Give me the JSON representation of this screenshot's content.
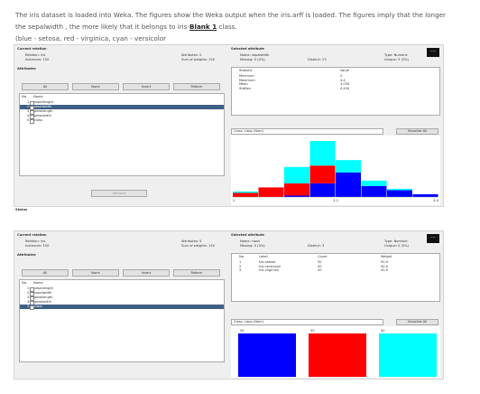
{
  "question": {
    "line1": "The iris dataset is loaded into Weka. The figures show the Weka output when the iris.arff is loaded. The figures imply that the longer",
    "line2_pre": "the sepalwidth , the more likely that it belongs to iris-",
    "blank": "Blank 1",
    "line2_post": " class.",
    "line3": "(blue - setosa, red - virginica, cyan - versicolor"
  },
  "screens": [
    {
      "current_relation": "Current relation",
      "relation": "Relation: iris",
      "instances": "Instances: 150",
      "attributes_count": "Attributes: 5",
      "sum_weights": "Sum of weights: 150",
      "attributes_title": "Attributes",
      "buttons": [
        "All",
        "None",
        "Invert",
        "Pattern"
      ],
      "columns": [
        "No.",
        "Name"
      ],
      "rows": [
        [
          "1",
          "sepallength"
        ],
        [
          "2",
          "sepalwidth"
        ],
        [
          "3",
          "petallength"
        ],
        [
          "4",
          "petalwidth"
        ],
        [
          "5",
          "class"
        ]
      ],
      "selected_row": 1,
      "remove": "Remove",
      "status": "Status",
      "selected_attribute": "Selected attribute",
      "name": "Name: sepalwidth",
      "missing": "Missing: 0 (0%)",
      "distinct": "Distinct: 23",
      "type": "Type: Numeric",
      "unique": "Unique: 5 (3%)",
      "stats_columns": [
        "Statistic",
        "Value"
      ],
      "stats": [
        [
          "Minimum",
          "2"
        ],
        [
          "Maximum",
          "4.4"
        ],
        [
          "Mean",
          "3.054"
        ],
        [
          "StdDev",
          "0.434"
        ]
      ],
      "class_select": "Class: class (Nom)",
      "visualize": "Visualize All",
      "histogram": {
        "colors": [
          "#0000ff",
          "#ff0000",
          "#00ffff"
        ],
        "segments": [
          [
            0,
            3,
            1
          ],
          [
            0,
            7,
            0
          ],
          [
            1,
            9,
            12
          ],
          [
            10,
            13,
            18
          ],
          [
            18,
            0,
            9
          ],
          [
            8,
            0,
            4
          ],
          [
            5,
            0,
            1
          ],
          [
            2,
            0,
            0
          ]
        ],
        "x_labels": [
          "2",
          "3.2",
          "4.4"
        ]
      }
    },
    {
      "current_relation": "Current relation",
      "relation": "Relation: iris",
      "instances": "Instances: 150",
      "attributes_count": "Attributes: 5",
      "sum_weights": "Sum of weights: 150",
      "attributes_title": "Attributes",
      "buttons": [
        "All",
        "None",
        "Invert",
        "Pattern"
      ],
      "columns": [
        "No.",
        "Name"
      ],
      "rows": [
        [
          "1",
          "sepallength"
        ],
        [
          "2",
          "sepalwidth"
        ],
        [
          "3",
          "petallength"
        ],
        [
          "4",
          "petalwidth"
        ],
        [
          "5",
          "class"
        ]
      ],
      "selected_row": 4,
      "selected_attribute": "Selected attribute",
      "name": "Name: class",
      "missing": "Missing: 0 (0%)",
      "distinct": "Distinct: 3",
      "type": "Type: Nominal",
      "unique": "Unique: 0 (0%)",
      "stats_columns": [
        "No.",
        "Label",
        "Count",
        "Weight"
      ],
      "stats": [
        [
          "1",
          "Iris-setosa",
          "50",
          "50.0"
        ],
        [
          "2",
          "Iris-versicolor",
          "50",
          "50.0"
        ],
        [
          "3",
          "Iris-virginica",
          "50",
          "50.0"
        ]
      ],
      "class_select": "Class: class (Nom)",
      "visualize": "Visualize All",
      "histogram": {
        "colors": [
          "#0000ff",
          "#ff0000",
          "#00ffff"
        ],
        "values": [
          50,
          50,
          50
        ]
      }
    }
  ]
}
